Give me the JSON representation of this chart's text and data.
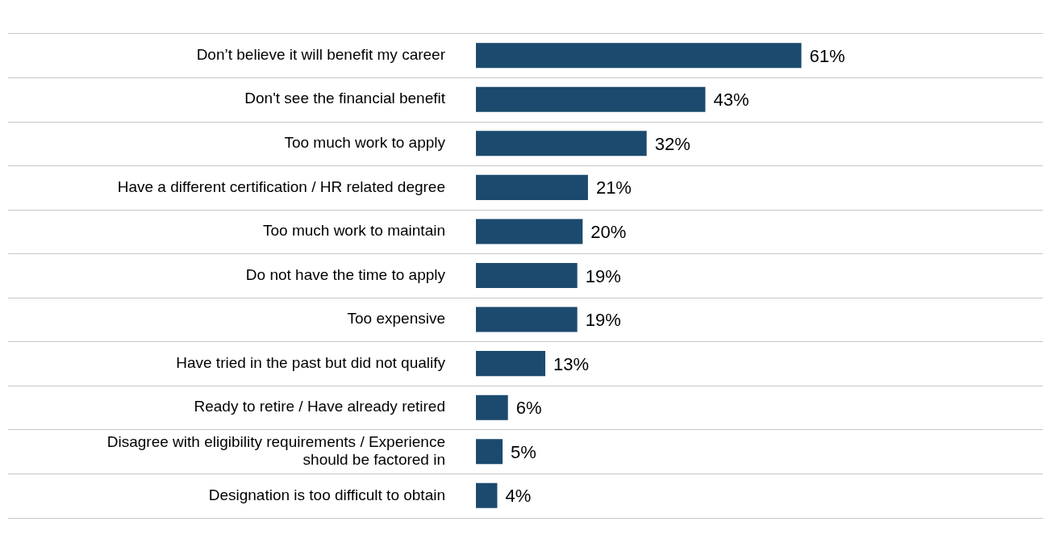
{
  "chart_data": {
    "type": "bar",
    "orientation": "horizontal",
    "categories": [
      "Don’t believe it will benefit my career",
      "Don't see the financial benefit",
      "Too much work to apply",
      "Have a different certification / HR related degree",
      "Too much work to maintain",
      "Do not have the time to apply",
      "Too expensive",
      "Have tried in the past but did not qualify",
      "Ready to retire / Have already retired",
      "Disagree with eligibility requirements / Experience should be factored in",
      "Designation is too difficult to obtain"
    ],
    "values": [
      61,
      43,
      32,
      21,
      20,
      19,
      19,
      13,
      6,
      5,
      4
    ],
    "value_labels": [
      "61%",
      "43%",
      "32%",
      "21%",
      "20%",
      "19%",
      "19%",
      "13%",
      "6%",
      "5%",
      "4%"
    ],
    "color": "#1b4a6e",
    "grid": "y",
    "legend": false,
    "tick_labels": "y"
  }
}
